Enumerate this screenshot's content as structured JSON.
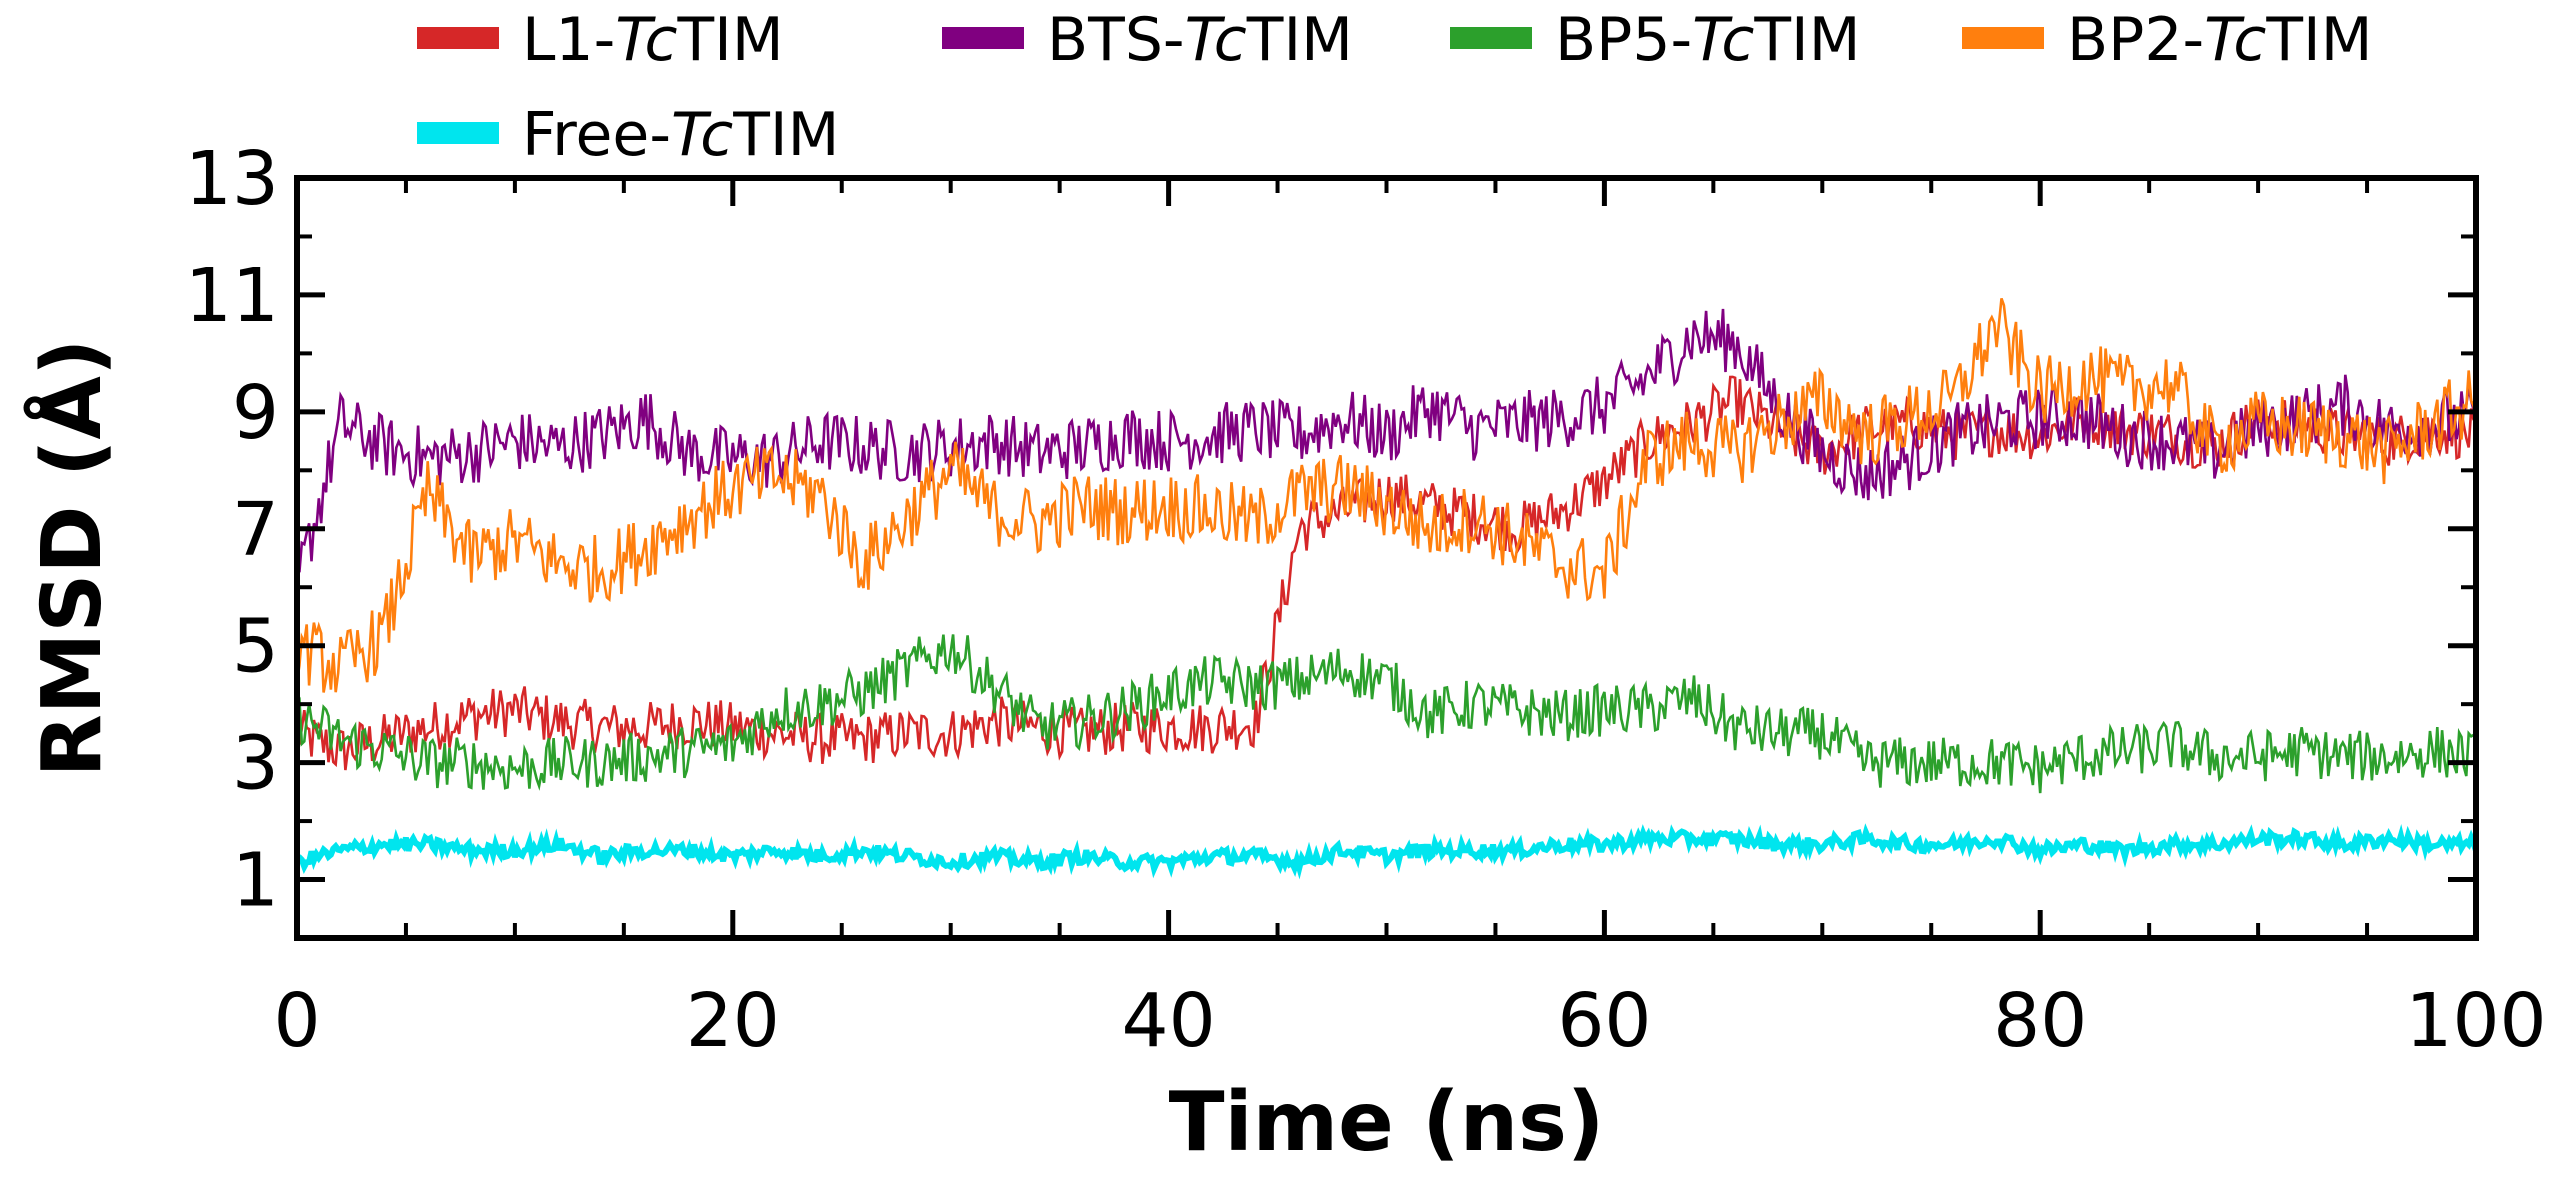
{
  "chart_data": {
    "type": "line",
    "title": "",
    "xlabel": "Time (ns)",
    "ylabel": "RMSD (Å)",
    "xlim": [
      0,
      100
    ],
    "ylim": [
      0,
      13
    ],
    "xticks": [
      "0",
      "20",
      "40",
      "60",
      "80",
      "100"
    ],
    "yticks": [
      "1",
      "3",
      "5",
      "7",
      "9",
      "11",
      "13"
    ],
    "legend_position": "top",
    "series": [
      {
        "name": "L1-TcTIM",
        "label_prefix": "L1-",
        "label_italic": "Tc",
        "label_suffix": "TIM",
        "color": "#d62728",
        "x": [
          0,
          2,
          4,
          6,
          8,
          10,
          12,
          14,
          16,
          18,
          20,
          22,
          24,
          26,
          28,
          30,
          32,
          34,
          36,
          38,
          40,
          42,
          44,
          46,
          48,
          50,
          52,
          54,
          56,
          58,
          60,
          62,
          64,
          66,
          68,
          70,
          72,
          74,
          76,
          78,
          80,
          82,
          84,
          86,
          88,
          90,
          92,
          94,
          96,
          98,
          100
        ],
        "y": [
          3.5,
          3.2,
          3.4,
          3.6,
          3.8,
          3.9,
          3.7,
          3.6,
          3.6,
          3.7,
          3.6,
          3.5,
          3.4,
          3.4,
          3.5,
          3.5,
          3.7,
          3.6,
          3.5,
          3.6,
          3.6,
          3.6,
          3.7,
          7.0,
          7.3,
          7.6,
          7.4,
          7.2,
          7.0,
          7.3,
          7.8,
          8.5,
          8.8,
          9.2,
          8.7,
          8.3,
          8.7,
          8.8,
          8.6,
          8.7,
          8.6,
          8.9,
          8.7,
          8.6,
          8.4,
          8.9,
          8.8,
          8.6,
          8.5,
          8.7,
          8.6
        ]
      },
      {
        "name": "BTS-TcTIM",
        "label_prefix": "BTS-",
        "label_italic": "Tc",
        "label_suffix": "TIM",
        "color": "#800080",
        "x": [
          0,
          2,
          4,
          6,
          8,
          10,
          12,
          14,
          16,
          18,
          20,
          22,
          24,
          26,
          28,
          30,
          32,
          34,
          36,
          38,
          40,
          42,
          44,
          46,
          48,
          50,
          52,
          54,
          56,
          58,
          60,
          62,
          64,
          66,
          68,
          70,
          72,
          74,
          76,
          78,
          80,
          82,
          84,
          86,
          88,
          90,
          92,
          94,
          96,
          98,
          100
        ],
        "y": [
          6.0,
          8.8,
          8.4,
          8.2,
          8.3,
          8.5,
          8.4,
          8.6,
          8.9,
          8.3,
          8.2,
          8.2,
          8.5,
          8.4,
          8.3,
          8.4,
          8.5,
          8.3,
          8.4,
          8.6,
          8.5,
          8.6,
          8.7,
          8.6,
          8.9,
          8.6,
          9.1,
          8.7,
          8.8,
          8.9,
          9.1,
          9.6,
          10.3,
          10.2,
          9.1,
          8.3,
          7.9,
          8.2,
          8.6,
          8.8,
          8.9,
          8.9,
          8.6,
          8.5,
          8.3,
          8.7,
          8.9,
          9.1,
          8.7,
          8.8,
          8.9
        ]
      },
      {
        "name": "BP5-TcTIM",
        "label_prefix": "BP5-",
        "label_italic": "Tc",
        "label_suffix": "TIM",
        "color": "#2ca02c",
        "x": [
          0,
          2,
          4,
          6,
          8,
          10,
          12,
          14,
          16,
          18,
          20,
          22,
          24,
          26,
          28,
          30,
          32,
          34,
          36,
          38,
          40,
          42,
          44,
          46,
          48,
          50,
          52,
          54,
          56,
          58,
          60,
          62,
          64,
          66,
          68,
          70,
          72,
          74,
          76,
          78,
          80,
          82,
          84,
          86,
          88,
          90,
          92,
          94,
          96,
          98,
          100
        ],
        "y": [
          3.8,
          3.4,
          3.2,
          3.0,
          3.0,
          2.9,
          3.0,
          3.0,
          3.1,
          3.2,
          3.3,
          3.9,
          4.0,
          4.2,
          4.6,
          5.0,
          4.3,
          3.6,
          3.7,
          3.9,
          4.2,
          4.4,
          4.3,
          4.4,
          4.6,
          4.4,
          3.8,
          4.0,
          3.9,
          3.8,
          3.9,
          3.9,
          4.1,
          3.6,
          3.5,
          3.5,
          3.0,
          3.0,
          3.0,
          3.0,
          2.9,
          3.1,
          3.2,
          3.3,
          3.1,
          3.1,
          3.2,
          3.1,
          3.1,
          3.2,
          3.1
        ]
      },
      {
        "name": "BP2-TcTIM",
        "label_prefix": "BP2-",
        "label_italic": "Tc",
        "label_suffix": "TIM",
        "color": "#ff7f0e",
        "x": [
          0,
          2,
          4,
          6,
          8,
          10,
          12,
          14,
          16,
          18,
          20,
          22,
          24,
          26,
          28,
          30,
          32,
          34,
          36,
          38,
          40,
          42,
          44,
          46,
          48,
          50,
          52,
          54,
          56,
          58,
          60,
          62,
          64,
          66,
          68,
          70,
          72,
          74,
          76,
          78,
          80,
          82,
          84,
          86,
          88,
          90,
          92,
          94,
          96,
          98,
          100
        ],
        "y": [
          5.0,
          4.6,
          5.2,
          7.6,
          6.5,
          6.8,
          6.4,
          6.3,
          6.7,
          7.2,
          7.7,
          7.9,
          7.6,
          6.4,
          7.2,
          8.0,
          7.3,
          7.1,
          7.4,
          7.3,
          7.4,
          7.3,
          7.1,
          7.6,
          7.7,
          7.4,
          7.0,
          7.2,
          6.8,
          6.4,
          6.2,
          8.2,
          8.5,
          8.3,
          8.8,
          9.2,
          8.6,
          8.9,
          9.2,
          10.5,
          9.3,
          9.6,
          9.4,
          9.5,
          8.4,
          8.8,
          8.7,
          8.6,
          8.3,
          8.8,
          9.2
        ]
      },
      {
        "name": "Free-TcTIM",
        "label_prefix": "Free-",
        "label_italic": "Tc",
        "label_suffix": "TIM",
        "color": "#00e5ee",
        "x": [
          0,
          2,
          4,
          6,
          8,
          10,
          12,
          14,
          16,
          18,
          20,
          22,
          24,
          26,
          28,
          30,
          32,
          34,
          36,
          38,
          40,
          42,
          44,
          46,
          48,
          50,
          52,
          54,
          56,
          58,
          60,
          62,
          64,
          66,
          68,
          70,
          72,
          74,
          76,
          78,
          80,
          82,
          84,
          86,
          88,
          90,
          92,
          94,
          96,
          98,
          100
        ],
        "y": [
          1.3,
          1.5,
          1.6,
          1.6,
          1.5,
          1.5,
          1.6,
          1.4,
          1.5,
          1.5,
          1.4,
          1.5,
          1.4,
          1.5,
          1.4,
          1.3,
          1.4,
          1.3,
          1.4,
          1.3,
          1.3,
          1.4,
          1.4,
          1.3,
          1.5,
          1.4,
          1.5,
          1.5,
          1.5,
          1.6,
          1.6,
          1.7,
          1.7,
          1.7,
          1.6,
          1.6,
          1.7,
          1.6,
          1.6,
          1.7,
          1.5,
          1.6,
          1.5,
          1.6,
          1.6,
          1.7,
          1.7,
          1.6,
          1.7,
          1.6,
          1.6
        ]
      }
    ]
  }
}
